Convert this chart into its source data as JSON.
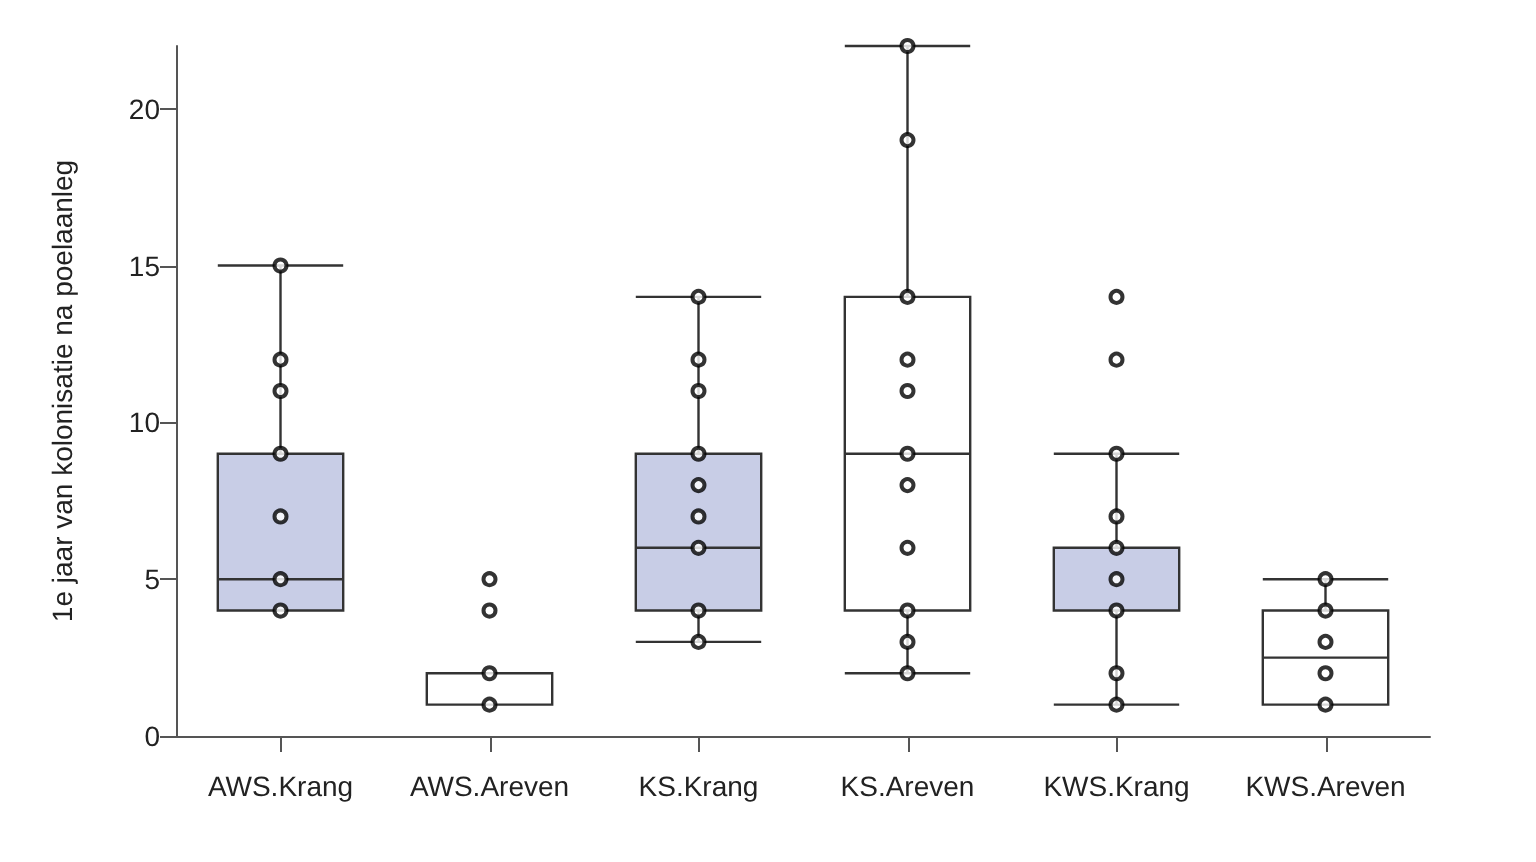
{
  "chart_data": {
    "type": "box",
    "ylabel": "1e jaar van kolonisatie na poelaanleg",
    "categories": [
      "AWS.Krang",
      "AWS.Areven",
      "KS.Krang",
      "KS.Areven",
      "KWS.Krang",
      "KWS.Areven"
    ],
    "boxes": [
      {
        "low": 4,
        "q1": 4,
        "median": 5,
        "q3": 9,
        "high": 15
      },
      {
        "low": 1,
        "q1": 1,
        "median": 1,
        "q3": 2,
        "high": 2
      },
      {
        "low": 3,
        "q1": 4,
        "median": 6,
        "q3": 9,
        "high": 14
      },
      {
        "low": 2,
        "q1": 4,
        "median": 9,
        "q3": 14,
        "high": 22
      },
      {
        "low": 1,
        "q1": 4,
        "median": 4,
        "q3": 6,
        "high": 9
      },
      {
        "low": 1,
        "q1": 1,
        "median": 2.5,
        "q3": 4,
        "high": 5
      }
    ],
    "colors": [
      "#c8cde6",
      "#ffffff",
      "#c8cde6",
      "#ffffff",
      "#c8cde6",
      "#ffffff"
    ],
    "series": [
      {
        "type": "scatter",
        "color": "#000000",
        "marker": "circle",
        "x": [
          "AWS.Krang",
          "AWS.Krang",
          "AWS.Krang",
          "AWS.Krang",
          "AWS.Krang",
          "AWS.Krang",
          "AWS.Krang",
          "AWS.Areven",
          "AWS.Areven",
          "AWS.Areven",
          "AWS.Areven",
          "KS.Krang",
          "KS.Krang",
          "KS.Krang",
          "KS.Krang",
          "KS.Krang",
          "KS.Krang",
          "KS.Krang",
          "KS.Krang",
          "KS.Krang",
          "KS.Areven",
          "KS.Areven",
          "KS.Areven",
          "KS.Areven",
          "KS.Areven",
          "KS.Areven",
          "KS.Areven",
          "KS.Areven",
          "KS.Areven",
          "KS.Areven",
          "KS.Areven",
          "KWS.Krang",
          "KWS.Krang",
          "KWS.Krang",
          "KWS.Krang",
          "KWS.Krang",
          "KWS.Krang",
          "KWS.Krang",
          "KWS.Krang",
          "KWS.Krang",
          "KWS.Areven",
          "KWS.Areven",
          "KWS.Areven",
          "KWS.Areven",
          "KWS.Areven"
        ],
        "values": [
          4,
          5,
          7,
          9,
          11,
          12,
          15,
          1,
          2,
          4,
          5,
          3,
          4,
          6,
          7,
          8,
          9,
          11,
          12,
          14,
          2,
          3,
          4,
          6,
          8,
          9,
          11,
          12,
          14,
          19,
          22,
          1,
          2,
          4,
          5,
          6,
          7,
          9,
          12,
          14,
          1,
          2,
          3,
          4,
          5
        ]
      }
    ],
    "ylim": [
      0,
      22
    ],
    "yticks": [
      0,
      5,
      10,
      15,
      20
    ],
    "grid": false
  }
}
